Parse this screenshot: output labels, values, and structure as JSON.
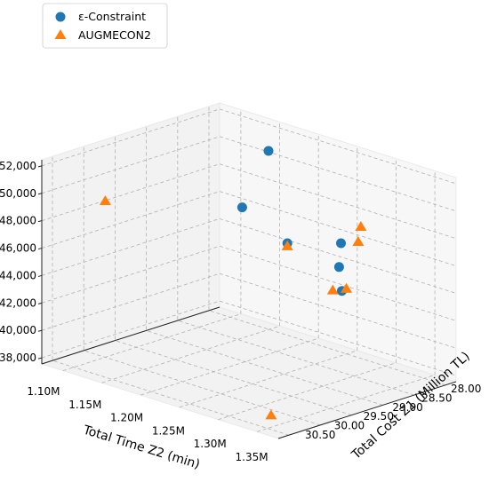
{
  "chart_data": {
    "type": "scatter",
    "title": "",
    "xlabel": "Total Cost Z1 (Million TL)",
    "ylabel": "Total Time Z2 (min)",
    "zlabel": "",
    "x_ticks": [
      "28.00",
      "28.50",
      "29.00",
      "29.50",
      "30.00",
      "30.50"
    ],
    "y_ticks": [
      "1.10M",
      "1.15M",
      "1.20M",
      "1.25M",
      "1.30M",
      "1.35M"
    ],
    "z_ticks": [
      "38,000",
      "40,000",
      "42,000",
      "44,000",
      "46,000",
      "48,000",
      "50,000",
      "52,000"
    ],
    "grid": true,
    "legend_position": "top-left",
    "series": [
      {
        "name": "ε-Constraint",
        "marker": "circle",
        "color": "#1f77b4",
        "points": [
          {
            "x": 30.4,
            "y": 1.35,
            "z": 51800
          },
          {
            "x": 29.2,
            "y": 1.32,
            "z": 47500
          },
          {
            "x": 28.0,
            "y": 1.14,
            "z": 51000
          },
          {
            "x": 28.8,
            "y": 1.17,
            "z": 48500
          },
          {
            "x": 28.4,
            "y": 1.26,
            "z": 46900
          },
          {
            "x": 28.9,
            "y": 1.3,
            "z": 44800
          }
        ]
      },
      {
        "name": "AUGMECON2",
        "marker": "triangle",
        "color": "#ff7f0e",
        "points": [
          {
            "x": 29.8,
            "y": 1.08,
            "z": 48800
          },
          {
            "x": 30.4,
            "y": 1.35,
            "z": 51600
          },
          {
            "x": 29.3,
            "y": 1.32,
            "z": 45900
          },
          {
            "x": 28.9,
            "y": 1.32,
            "z": 49000
          },
          {
            "x": 28.6,
            "y": 1.3,
            "z": 49300
          },
          {
            "x": 28.7,
            "y": 1.29,
            "z": 44500
          },
          {
            "x": 30.4,
            "y": 1.33,
            "z": 38200
          }
        ]
      }
    ]
  }
}
